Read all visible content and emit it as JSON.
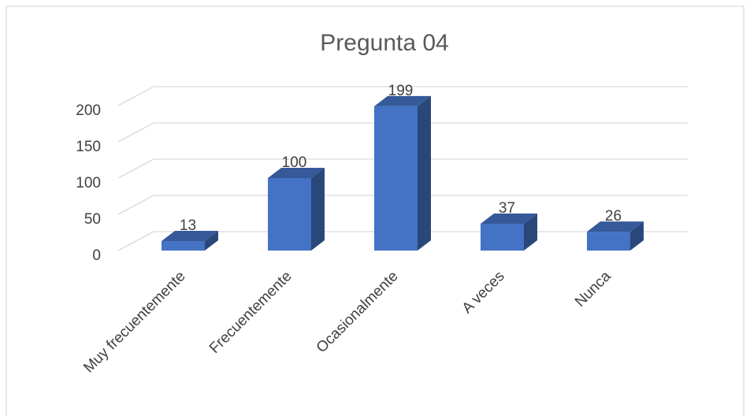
{
  "chart_data": {
    "type": "bar3d",
    "title": "Pregunta 04",
    "categories": [
      "Muy frecuentemente",
      "Frecuentemente",
      "Ocasionalmente",
      "A veces",
      "Nunca"
    ],
    "values": [
      13,
      100,
      199,
      37,
      26
    ],
    "color": "#4472c4",
    "ylim": [
      0,
      200
    ],
    "yticks": [
      0,
      50,
      100,
      150,
      200
    ],
    "grid": true
  }
}
